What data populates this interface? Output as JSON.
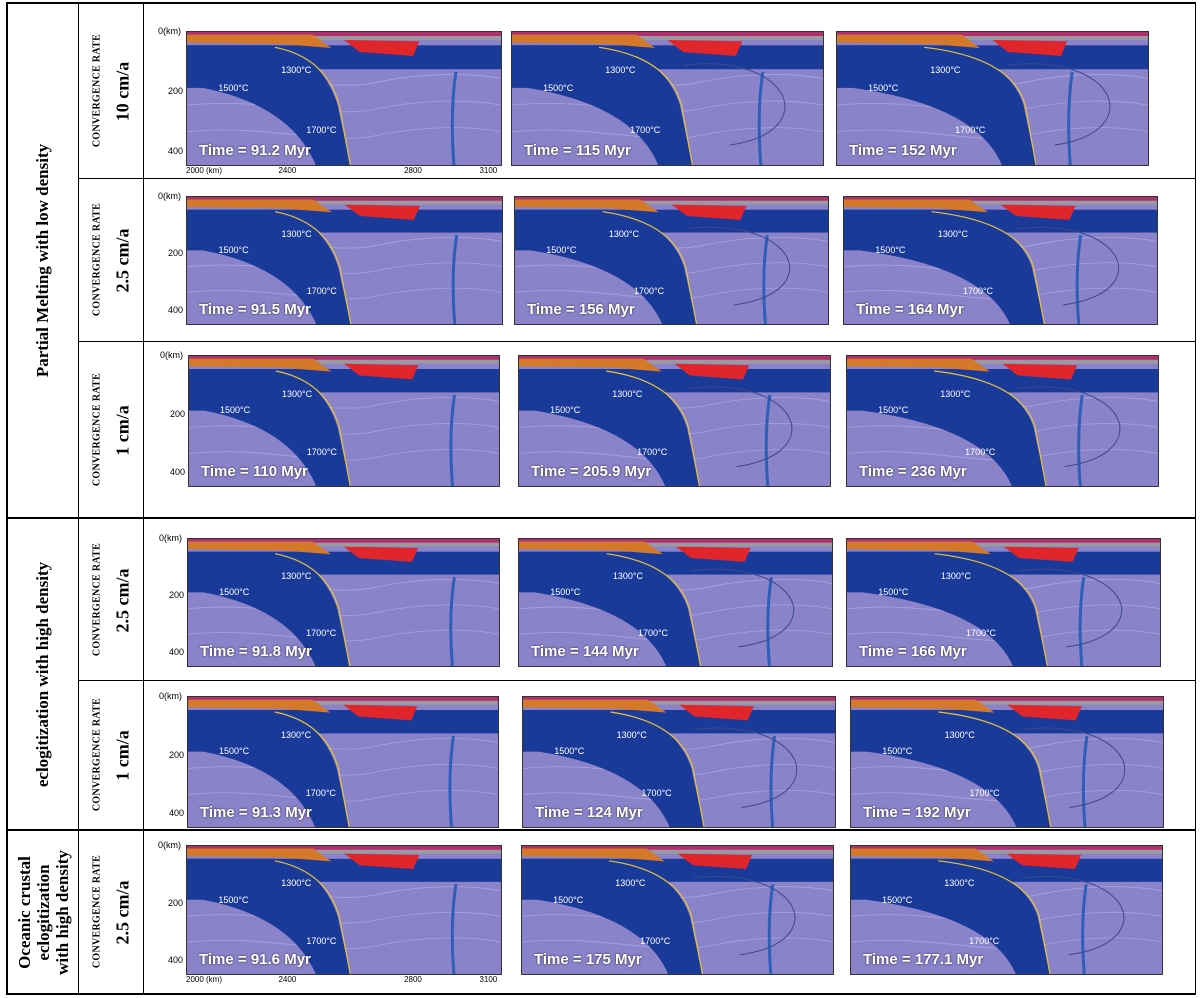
{
  "groups": [
    {
      "label": "Partial Melting with low density"
    },
    {
      "label": "eclogitization with high density"
    },
    {
      "label": "Oceanic crustal eclogitization with high density",
      "lines": [
        "Oceanic crustal",
        "eclogitization",
        "with high density"
      ]
    }
  ],
  "convergence_label": "CONVERGENCE RATE",
  "y_ticks": [
    "0(km)",
    "200",
    "400"
  ],
  "x_ticks": [
    "2000 (km)",
    "2400",
    "2800",
    "3100"
  ],
  "temperature_labels": [
    "1300°C",
    "1500°C",
    "1700°C"
  ],
  "rows": [
    {
      "rate": "10  cm/a",
      "times": [
        "Time = 91.2 Myr",
        "Time = 115 Myr",
        "Time = 152 Myr"
      ]
    },
    {
      "rate": "2.5  cm/a",
      "times": [
        "Time = 91.5 Myr",
        "Time = 156 Myr",
        "Time = 164 Myr"
      ]
    },
    {
      "rate": "1  cm/a",
      "times": [
        "Time = 110 Myr",
        "Time = 205.9 Myr",
        "Time = 236 Myr"
      ]
    },
    {
      "rate": "2.5  cm/a",
      "times": [
        "Time = 91.8 Myr",
        "Time = 144 Myr",
        "Time = 166 Myr"
      ]
    },
    {
      "rate": "1  cm/a",
      "times": [
        "Time = 91.3 Myr",
        "Time = 124 Myr",
        "Time = 192 Myr"
      ]
    },
    {
      "rate": "2.5  cm/a",
      "times": [
        "Time = 91.6 Myr",
        "Time = 175 Myr",
        "Time = 177.1 Myr"
      ]
    }
  ],
  "colors": {
    "mantle": "#8b83c9",
    "lithosphere": "#1a3a9a",
    "crust_orange": "#d4782a",
    "melt_red": "#e0262a",
    "sediment_magenta": "#b0306e",
    "gray_layer": "#9a9aa0"
  }
}
